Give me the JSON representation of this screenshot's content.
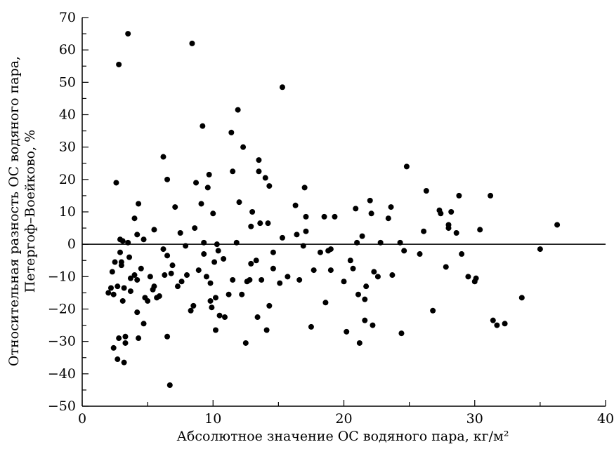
{
  "chart_data": {
    "type": "scatter",
    "title": "",
    "xlabel": "Абсолютное значение ОС водяного пара, кг/м²",
    "ylabel_lines": [
      "Относительная разность ОС водяного пара,",
      "Петергоф–Воейково, %"
    ],
    "xlim": [
      0,
      40
    ],
    "ylim": [
      -50,
      70
    ],
    "x_ticks": [
      0,
      10,
      20,
      30,
      40
    ],
    "y_ticks": [
      -50,
      -40,
      -30,
      -20,
      -10,
      0,
      10,
      20,
      30,
      40,
      50,
      60,
      70
    ],
    "x_tick_labels": [
      "0",
      "10",
      "20",
      "30",
      "40"
    ],
    "y_tick_labels": [
      "−50",
      "−40",
      "−30",
      "−20",
      "−10",
      "0",
      "10",
      "20",
      "30",
      "40",
      "50",
      "60",
      "70"
    ],
    "grid": false,
    "zero_line": true,
    "marker_color": "#000000",
    "points": [
      [
        2.0,
        -15.0
      ],
      [
        2.2,
        -13.5
      ],
      [
        2.3,
        -8.5
      ],
      [
        2.4,
        -15.5
      ],
      [
        2.5,
        -5.5
      ],
      [
        2.4,
        -32.0
      ],
      [
        2.6,
        19.0
      ],
      [
        2.7,
        -35.5
      ],
      [
        2.8,
        -29.0
      ],
      [
        2.8,
        55.5
      ],
      [
        2.7,
        -13.0
      ],
      [
        2.9,
        1.5
      ],
      [
        2.9,
        -2.5
      ],
      [
        3.0,
        -6.5
      ],
      [
        3.0,
        -5.5
      ],
      [
        3.1,
        1.0
      ],
      [
        3.1,
        -17.5
      ],
      [
        3.2,
        -13.5
      ],
      [
        3.2,
        -36.5
      ],
      [
        3.3,
        -30.5
      ],
      [
        3.3,
        -28.5
      ],
      [
        3.5,
        65.0
      ],
      [
        3.5,
        0.5
      ],
      [
        3.6,
        -4.0
      ],
      [
        3.7,
        -10.5
      ],
      [
        3.7,
        -14.5
      ],
      [
        4.0,
        8.0
      ],
      [
        4.0,
        -9.5
      ],
      [
        4.2,
        3.0
      ],
      [
        4.2,
        -11.0
      ],
      [
        4.2,
        -21.0
      ],
      [
        4.3,
        12.5
      ],
      [
        4.3,
        -29.0
      ],
      [
        4.5,
        -7.5
      ],
      [
        4.7,
        1.5
      ],
      [
        4.7,
        -24.5
      ],
      [
        4.8,
        -16.5
      ],
      [
        5.0,
        -17.5
      ],
      [
        5.2,
        -10.0
      ],
      [
        5.4,
        -14.0
      ],
      [
        5.5,
        4.5
      ],
      [
        5.5,
        -13.0
      ],
      [
        5.7,
        -16.5
      ],
      [
        5.9,
        -16.0
      ],
      [
        6.2,
        27.0
      ],
      [
        6.2,
        -1.5
      ],
      [
        6.3,
        -9.5
      ],
      [
        6.5,
        20.0
      ],
      [
        6.5,
        -3.5
      ],
      [
        6.5,
        -28.5
      ],
      [
        6.7,
        -43.5
      ],
      [
        6.8,
        -9.0
      ],
      [
        6.9,
        -6.5
      ],
      [
        7.1,
        11.5
      ],
      [
        7.3,
        -13.0
      ],
      [
        7.5,
        3.5
      ],
      [
        7.6,
        -11.5
      ],
      [
        7.9,
        -0.5
      ],
      [
        8.0,
        -9.5
      ],
      [
        8.3,
        -20.5
      ],
      [
        8.4,
        62.0
      ],
      [
        8.5,
        -19.0
      ],
      [
        8.6,
        5.0
      ],
      [
        8.7,
        19.0
      ],
      [
        8.9,
        -8.0
      ],
      [
        9.1,
        12.5
      ],
      [
        9.2,
        36.5
      ],
      [
        9.3,
        0.5
      ],
      [
        9.3,
        -3.0
      ],
      [
        9.5,
        -10.0
      ],
      [
        9.6,
        17.5
      ],
      [
        9.7,
        21.5
      ],
      [
        9.8,
        -12.0
      ],
      [
        9.8,
        -17.5
      ],
      [
        9.9,
        -19.5
      ],
      [
        10.0,
        9.5
      ],
      [
        10.1,
        -5.5
      ],
      [
        10.2,
        -16.5
      ],
      [
        10.2,
        -26.5
      ],
      [
        10.3,
        0.0
      ],
      [
        10.4,
        -2.0
      ],
      [
        10.5,
        -22.0
      ],
      [
        10.8,
        -4.5
      ],
      [
        10.9,
        -22.5
      ],
      [
        11.2,
        -15.5
      ],
      [
        11.4,
        34.5
      ],
      [
        11.5,
        22.5
      ],
      [
        11.5,
        -11.0
      ],
      [
        11.8,
        0.5
      ],
      [
        11.9,
        41.5
      ],
      [
        12.0,
        13.0
      ],
      [
        12.2,
        -15.5
      ],
      [
        12.3,
        30.0
      ],
      [
        12.5,
        -30.5
      ],
      [
        12.6,
        -11.5
      ],
      [
        12.8,
        -11.0
      ],
      [
        12.9,
        5.5
      ],
      [
        12.9,
        -6.0
      ],
      [
        13.0,
        10.0
      ],
      [
        13.3,
        -5.0
      ],
      [
        13.4,
        -22.5
      ],
      [
        13.5,
        26.0
      ],
      [
        13.5,
        22.5
      ],
      [
        13.6,
        6.5
      ],
      [
        13.7,
        -11.0
      ],
      [
        14.0,
        20.5
      ],
      [
        14.1,
        -26.5
      ],
      [
        14.2,
        6.5
      ],
      [
        14.3,
        18.0
      ],
      [
        14.3,
        -19.0
      ],
      [
        14.6,
        -2.5
      ],
      [
        14.6,
        -7.5
      ],
      [
        15.1,
        -12.0
      ],
      [
        15.3,
        2.0
      ],
      [
        15.3,
        48.5
      ],
      [
        15.7,
        -10.0
      ],
      [
        16.3,
        12.0
      ],
      [
        16.4,
        3.0
      ],
      [
        16.6,
        -11.0
      ],
      [
        16.9,
        -0.5
      ],
      [
        17.0,
        17.5
      ],
      [
        17.1,
        8.5
      ],
      [
        17.1,
        4.0
      ],
      [
        17.5,
        -25.5
      ],
      [
        17.7,
        -8.0
      ],
      [
        18.2,
        -2.5
      ],
      [
        18.5,
        8.5
      ],
      [
        18.6,
        -18.0
      ],
      [
        18.8,
        -2.0
      ],
      [
        19.0,
        -1.5
      ],
      [
        19.0,
        -8.0
      ],
      [
        19.3,
        8.5
      ],
      [
        20.0,
        -11.5
      ],
      [
        20.2,
        -27.0
      ],
      [
        20.5,
        -5.0
      ],
      [
        20.7,
        -7.5
      ],
      [
        20.9,
        11.0
      ],
      [
        21.0,
        0.5
      ],
      [
        21.1,
        -15.5
      ],
      [
        21.2,
        -30.5
      ],
      [
        21.4,
        2.5
      ],
      [
        21.6,
        -23.5
      ],
      [
        21.6,
        -17.0
      ],
      [
        21.7,
        -13.0
      ],
      [
        22.0,
        13.5
      ],
      [
        22.1,
        9.5
      ],
      [
        22.2,
        -25.0
      ],
      [
        22.3,
        -8.5
      ],
      [
        22.6,
        -10.0
      ],
      [
        22.8,
        0.5
      ],
      [
        23.4,
        8.0
      ],
      [
        23.6,
        11.5
      ],
      [
        23.7,
        -9.5
      ],
      [
        24.3,
        0.5
      ],
      [
        24.4,
        -27.5
      ],
      [
        24.6,
        -2.0
      ],
      [
        24.8,
        24.0
      ],
      [
        25.8,
        -3.0
      ],
      [
        26.1,
        4.0
      ],
      [
        26.3,
        16.5
      ],
      [
        26.8,
        -20.5
      ],
      [
        27.3,
        10.5
      ],
      [
        27.4,
        9.5
      ],
      [
        27.8,
        -7.0
      ],
      [
        28.0,
        6.0
      ],
      [
        28.0,
        5.0
      ],
      [
        28.2,
        10.0
      ],
      [
        28.6,
        3.5
      ],
      [
        28.8,
        15.0
      ],
      [
        29.0,
        -3.0
      ],
      [
        29.5,
        -10.0
      ],
      [
        30.0,
        -11.5
      ],
      [
        30.1,
        -10.5
      ],
      [
        30.4,
        4.5
      ],
      [
        31.2,
        15.0
      ],
      [
        31.4,
        -23.5
      ],
      [
        31.7,
        -25.0
      ],
      [
        32.3,
        -24.5
      ],
      [
        33.6,
        -16.5
      ],
      [
        35.0,
        -1.5
      ],
      [
        36.3,
        6.0
      ]
    ]
  }
}
